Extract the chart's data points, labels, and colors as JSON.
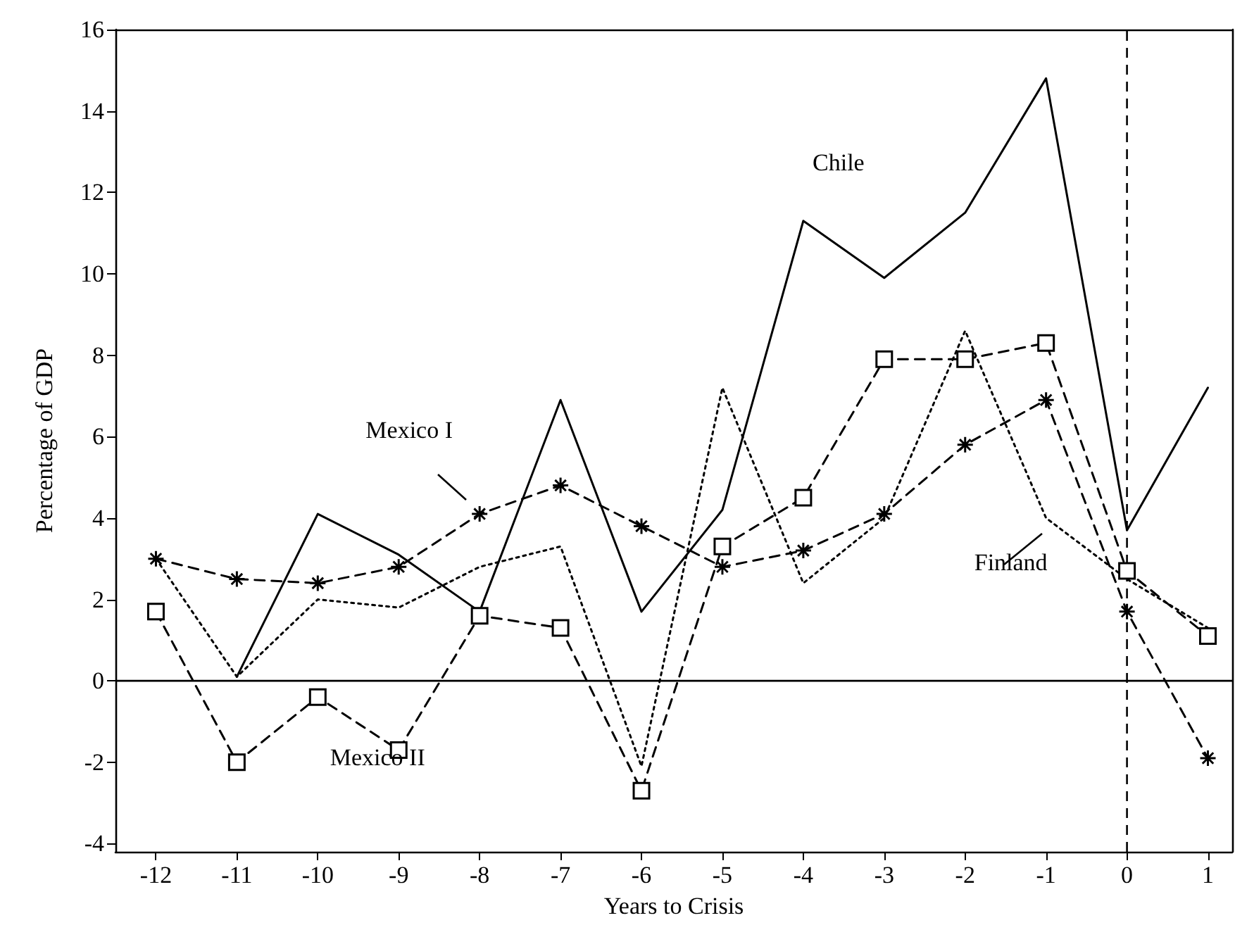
{
  "chart_data": {
    "type": "line",
    "xlabel": "Years to Crisis",
    "ylabel": "Percentage of GDP",
    "x": [
      -12,
      -11,
      -10,
      -9,
      -8,
      -7,
      -6,
      -5,
      -4,
      -3,
      -2,
      -1,
      0,
      1
    ],
    "xlim": [
      -12.5,
      1.3
    ],
    "xticks": [
      -12,
      -11,
      -10,
      -9,
      -8,
      -7,
      -6,
      -5,
      -4,
      -3,
      -2,
      -1,
      0,
      1
    ],
    "ylim": [
      -4.2,
      16
    ],
    "yticks": [
      -4,
      -2,
      0,
      2,
      4,
      6,
      8,
      10,
      12,
      14,
      16
    ],
    "grid": false,
    "legend": false,
    "series": [
      {
        "name": "Chile",
        "color": "#000000",
        "line_style": "solid",
        "marker": "none",
        "values": [
          null,
          0.1,
          4.1,
          3.1,
          1.7,
          6.9,
          1.7,
          4.2,
          11.3,
          9.9,
          11.5,
          14.8,
          3.7,
          7.2
        ]
      },
      {
        "name": "Mexico I",
        "color": "#000000",
        "line_style": "dashed",
        "marker": "cross",
        "values": [
          3.0,
          2.5,
          2.4,
          2.8,
          4.1,
          4.8,
          3.8,
          2.8,
          3.2,
          4.1,
          5.8,
          6.9,
          1.7,
          -1.9
        ]
      },
      {
        "name": "Finland",
        "color": "#000000",
        "line_style": "dotted",
        "marker": "none",
        "values": [
          3.0,
          0.1,
          2.0,
          1.8,
          2.8,
          3.3,
          -2.1,
          7.2,
          2.4,
          4.0,
          8.6,
          4.0,
          2.5,
          1.3
        ]
      },
      {
        "name": "Mexico II",
        "color": "#000000",
        "line_style": "dashed",
        "marker": "square",
        "values": [
          1.7,
          -2.0,
          -0.4,
          -1.7,
          1.6,
          1.3,
          -2.7,
          3.3,
          4.5,
          7.9,
          7.9,
          8.3,
          2.7,
          1.1
        ]
      }
    ],
    "ref_lines": [
      {
        "axis": "y",
        "value": 0,
        "color": "#000000",
        "line_style": "solid"
      },
      {
        "axis": "x",
        "value": 0,
        "color": "#000000",
        "line_style": "dashed"
      }
    ]
  }
}
